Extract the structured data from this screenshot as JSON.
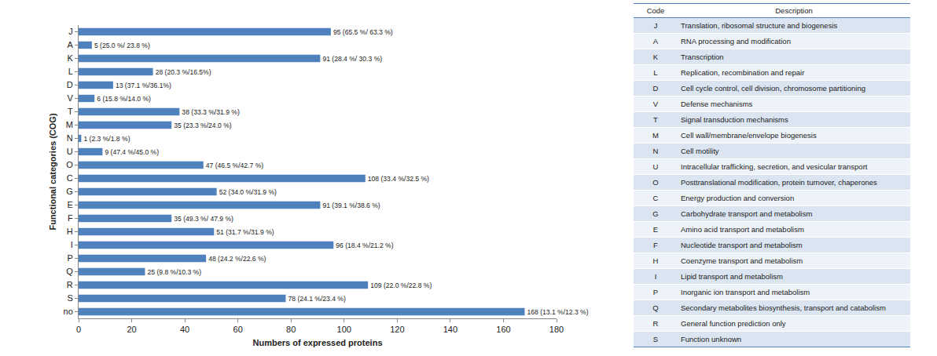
{
  "chart_data": {
    "type": "bar",
    "orientation": "horizontal",
    "x_label": "Numbers of expressed proteins",
    "y_label": "Functional categories (COG)",
    "categories": [
      "J",
      "A",
      "K",
      "L",
      "D",
      "V",
      "T",
      "M",
      "N",
      "U",
      "O",
      "C",
      "G",
      "E",
      "F",
      "H",
      "I",
      "P",
      "Q",
      "R",
      "S",
      "no"
    ],
    "values": [
      95,
      5,
      91,
      28,
      13,
      6,
      38,
      35,
      1,
      9,
      47,
      108,
      52,
      91,
      35,
      51,
      96,
      48,
      25,
      109,
      78,
      168
    ],
    "value_labels": [
      "95 (65.5 %/ 63.3 %)",
      "5 (25.0 %/ 23.8 %)",
      "91 (28.4 %/ 30.3 %)",
      "28 (20.3 %/16.5%)",
      "13 (37.1 %/36.1%)",
      "6 (15.8 %/14.0 %)",
      "38 (33.3 %/31.9 %)",
      "35 (23.3 %/24.0 %)",
      "1 (2.3 %/1.8 %)",
      "9 (47.4 %/45.0 %)",
      "47 (46.5 %/42.7 %)",
      "108 (33.4 %/32.5 %)",
      "52 (34.0 %/31.9 %)",
      "91 (39.1 %/38.6 %)",
      "35 (49.3 %/ 47.9 %)",
      "51 (31.7 %/31.9 %)",
      "96 (18.4 %/21.2 %)",
      "48 (24.2 %/22.6 %)",
      "25 (9.8 %/10.3 %)",
      "109 (22.0 %/22.8 %)",
      "78 (24.1 %/23.4 %)",
      "168 (13.1 %/12.3 %)"
    ],
    "color": "#4f81bd",
    "xlim": [
      0,
      180
    ],
    "xticks": [
      0,
      20,
      40,
      60,
      80,
      100,
      120,
      140,
      160,
      180
    ],
    "grid": false,
    "data_labels": true
  },
  "table": {
    "header": [
      "Code",
      "Description"
    ],
    "rows": [
      [
        "J",
        "Translation, ribosomal structure and biogenesis"
      ],
      [
        "A",
        "RNA processing and modification"
      ],
      [
        "K",
        "Transcription"
      ],
      [
        "L",
        "Replication, recombination and repair"
      ],
      [
        "D",
        "Cell cycle control, cell division, chromosome partitioning"
      ],
      [
        "V",
        "Defense mechanisms"
      ],
      [
        "T",
        "Signal transduction mechanisms"
      ],
      [
        "M",
        "Cell wall/membrane/envelope biogenesis"
      ],
      [
        "N",
        "Cell motility"
      ],
      [
        "U",
        "Intracellular trafficking, secretion, and vesicular transport"
      ],
      [
        "O",
        "Posttranslational modification, protein turnover, chaperones"
      ],
      [
        "C",
        "Energy production and conversion"
      ],
      [
        "G",
        "Carbohydrate transport and metabolism"
      ],
      [
        "E",
        "Amino acid transport and metabolism"
      ],
      [
        "F",
        "Nucleotide transport and metabolism"
      ],
      [
        "H",
        "Coenzyme transport and metabolism"
      ],
      [
        "I",
        "Lipid transport and metabolism"
      ],
      [
        "P",
        "Inorganic ion transport and metabolism"
      ],
      [
        "Q",
        "Secondary metabolites biosynthesis, transport and catabolism"
      ],
      [
        "R",
        "General function prediction only"
      ],
      [
        "S",
        "Function unknown"
      ]
    ]
  }
}
